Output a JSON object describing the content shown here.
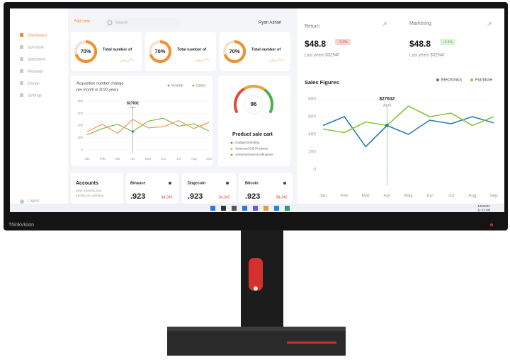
{
  "brand": "ThinkVision",
  "sidebar": {
    "items": [
      "Dashboard",
      "Schedule",
      "Statement",
      "Message",
      "Design",
      "Settings"
    ],
    "logout": "Logout"
  },
  "topbar": {
    "add": "Add new",
    "search": "Search",
    "user": "Ryan Azhari"
  },
  "stat_cards": [
    {
      "value": "70%",
      "label": "Total number of"
    },
    {
      "value": "70%",
      "label": "Total number of"
    },
    {
      "value": "70%",
      "label": "Total number of"
    }
  ],
  "acquisition": {
    "title_lines": [
      "Acquisition number change",
      "per month in 2020 years"
    ],
    "categories": [
      "Jan",
      "Feb",
      "Mar",
      "Apr",
      "May",
      "Jun",
      "Jul",
      "Aug",
      "Sep"
    ],
    "series": [
      {
        "name": "Income",
        "color": "#7cb342",
        "values": [
          250,
          350,
          420,
          300,
          470,
          520,
          390,
          430,
          310
        ]
      },
      {
        "name": "Users",
        "color": "#f0963a",
        "values": [
          300,
          420,
          270,
          500,
          360,
          380,
          480,
          350,
          450
        ]
      }
    ],
    "ylim": [
      0,
      800
    ],
    "yticks": [
      0,
      200,
      400,
      600,
      800
    ],
    "tooltip": {
      "value": "$27632",
      "label": "April"
    }
  },
  "gauge": {
    "value": "96",
    "title": "Product sale cart",
    "items": [
      "Gadget Branding",
      "Seasonal Gift Products",
      "Advertisement & Influencer"
    ]
  },
  "accounts": {
    "title": "Accounts",
    "subtitle_lines": [
      "Start tracking your",
      "trading on coinbase"
    ]
  },
  "coins": [
    {
      "name": "Binance",
      "value": ".923",
      "change": "$4,345"
    },
    {
      "name": "Dogecoin",
      "value": ".923",
      "change": "$4,345"
    },
    {
      "name": "Bitcoin",
      "value": ".923",
      "change": "$4,345"
    }
  ],
  "return": {
    "title": "Return",
    "value": "$48.8",
    "badge": "-3.4%",
    "note": "Last years $32940"
  },
  "marketing": {
    "title": "Marketing",
    "value": "$48.8",
    "badge": "+2.4%",
    "note": "Last years $32940"
  },
  "sales": {
    "title": "Sales Figures",
    "categories": [
      "Jan",
      "Feb",
      "Mar",
      "Apr",
      "May",
      "Jun",
      "Jul",
      "Aug",
      "Sep"
    ],
    "series": [
      {
        "name": "Electronics",
        "color": "#2b7bb9",
        "values": [
          500,
          600,
          260,
          500,
          400,
          560,
          520,
          600,
          530
        ]
      },
      {
        "name": "Furniture",
        "color": "#8fc33a",
        "values": [
          460,
          420,
          540,
          500,
          720,
          600,
          640,
          500,
          600
        ]
      }
    ],
    "ylim": [
      0,
      800
    ],
    "yticks": [
      0,
      200,
      400,
      600,
      800
    ],
    "tooltip": {
      "value": "$27632",
      "label": "April"
    }
  },
  "taskbar": {
    "date": "10/20/22",
    "time": "11:11 AM"
  }
}
